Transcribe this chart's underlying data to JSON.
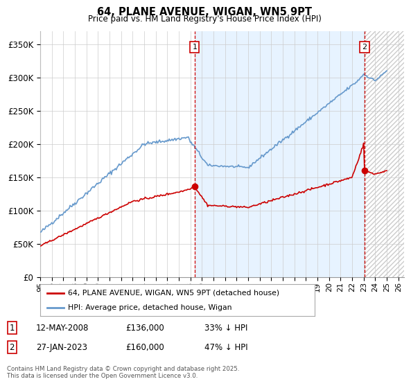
{
  "title": "64, PLANE AVENUE, WIGAN, WN5 9PT",
  "subtitle": "Price paid vs. HM Land Registry's House Price Index (HPI)",
  "ylabel_ticks": [
    "£0",
    "£50K",
    "£100K",
    "£150K",
    "£200K",
    "£250K",
    "£300K",
    "£350K"
  ],
  "ytick_values": [
    0,
    50000,
    100000,
    150000,
    200000,
    250000,
    300000,
    350000
  ],
  "ylim": [
    0,
    370000
  ],
  "xlim_start": 1995.0,
  "xlim_end": 2026.5,
  "red_line_color": "#cc0000",
  "blue_line_color": "#6699cc",
  "annotation_1_label": "1",
  "annotation_1_date": "12-MAY-2008",
  "annotation_1_price": "£136,000",
  "annotation_1_hpi": "33% ↓ HPI",
  "annotation_2_label": "2",
  "annotation_2_date": "27-JAN-2023",
  "annotation_2_price": "£160,000",
  "annotation_2_hpi": "47% ↓ HPI",
  "legend_red_label": "64, PLANE AVENUE, WIGAN, WN5 9PT (detached house)",
  "legend_blue_label": "HPI: Average price, detached house, Wigan",
  "footer_text": "Contains HM Land Registry data © Crown copyright and database right 2025.\nThis data is licensed under the Open Government Licence v3.0.",
  "sale_1_x": 2008.37,
  "sale_1_y": 136000,
  "sale_2_x": 2023.08,
  "sale_2_y": 160000,
  "dashed_x1": 2008.37,
  "dashed_x2": 2023.08,
  "background_color": "#ffffff",
  "fill_color": "#ddeeff",
  "grid_color": "#cccccc",
  "xtick_years": [
    1995,
    1996,
    1997,
    1998,
    1999,
    2000,
    2001,
    2002,
    2003,
    2004,
    2005,
    2006,
    2007,
    2008,
    2009,
    2010,
    2011,
    2012,
    2013,
    2014,
    2015,
    2016,
    2017,
    2018,
    2019,
    2020,
    2021,
    2022,
    2023,
    2024,
    2025,
    2026
  ]
}
